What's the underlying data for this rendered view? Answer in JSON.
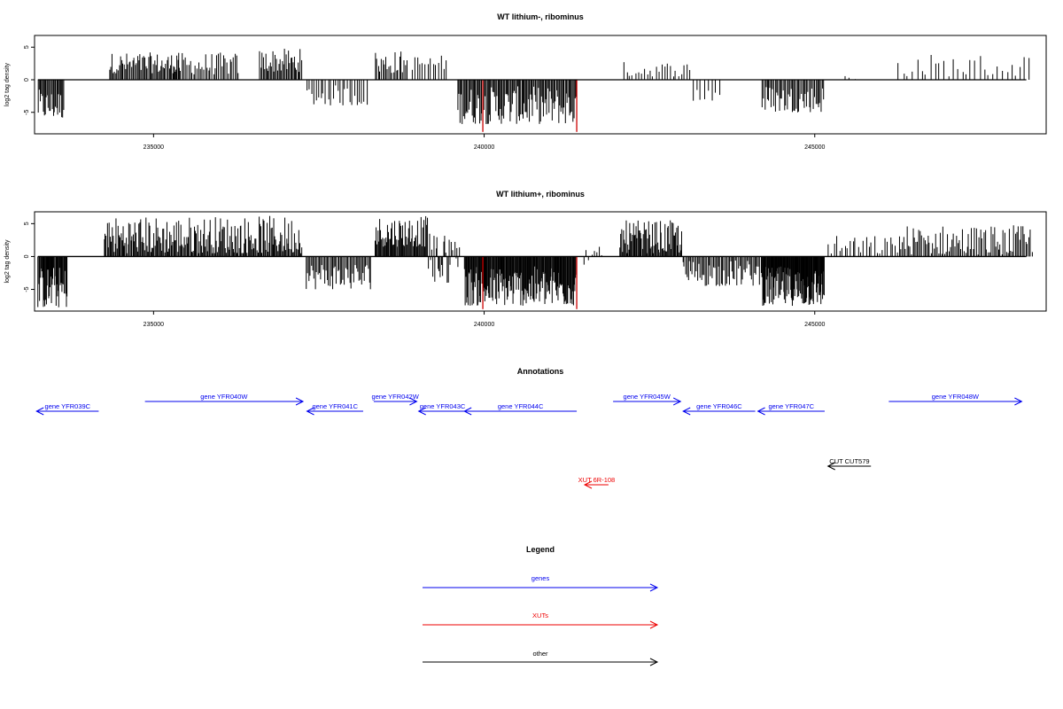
{
  "chart_data": [
    {
      "type": "bar",
      "title": "WT lithium-, ribominus",
      "ylabel": "log2 tag density",
      "xlim": [
        233200,
        248500
      ],
      "ylim": [
        -8.3,
        6.8
      ],
      "x_ticks": [
        235000,
        240000,
        245000
      ],
      "x_tick_labels": [
        "235000",
        "240000",
        "245000"
      ],
      "y_ticks": [
        -5,
        0,
        5
      ],
      "y_tick_labels": [
        "-5",
        "0",
        "5"
      ],
      "grid": false,
      "baseline_range": [
        233250,
        248200
      ],
      "highlight_color": "#cc0000",
      "highlights": [
        {
          "x": 239980,
          "value": -8.0
        },
        {
          "x": 241400,
          "value": -8.0
        }
      ],
      "segments": [
        {
          "start": 233250,
          "end": 233650,
          "n": 26,
          "min": -6.0,
          "max": -1.5,
          "sign": -1
        },
        {
          "start": 234330,
          "end": 235400,
          "n": 58,
          "min": 1.0,
          "max": 4.2,
          "sign": 1
        },
        {
          "start": 235300,
          "end": 236300,
          "n": 40,
          "min": 0.8,
          "max": 4.2,
          "sign": 1
        },
        {
          "start": 236600,
          "end": 237250,
          "n": 36,
          "min": 1.2,
          "max": 4.8,
          "sign": 1
        },
        {
          "start": 237300,
          "end": 238250,
          "n": 26,
          "min": -4.0,
          "max": -0.8,
          "sign": -1
        },
        {
          "start": 238350,
          "end": 238850,
          "n": 22,
          "min": 1.0,
          "max": 4.5,
          "sign": 1
        },
        {
          "start": 238900,
          "end": 239450,
          "n": 14,
          "min": 1.5,
          "max": 3.8,
          "sign": 1
        },
        {
          "start": 239600,
          "end": 241400,
          "n": 110,
          "min": -6.8,
          "max": -1.0,
          "sign": -1
        },
        {
          "start": 242100,
          "end": 243150,
          "n": 24,
          "min": 0.5,
          "max": 2.8,
          "sign": 1
        },
        {
          "start": 243150,
          "end": 243600,
          "n": 8,
          "min": -3.5,
          "max": -0.5,
          "sign": -1
        },
        {
          "start": 244200,
          "end": 245150,
          "n": 48,
          "min": -5.0,
          "max": -0.8,
          "sign": -1
        },
        {
          "start": 245400,
          "end": 245800,
          "n": 4,
          "min": -1.2,
          "max": 1.0,
          "sign": 1
        },
        {
          "start": 246250,
          "end": 248300,
          "n": 30,
          "min": 0.5,
          "max": 4.0,
          "sign": 1
        }
      ]
    },
    {
      "type": "bar",
      "title": "WT lithium+, ribominus",
      "ylabel": "log2 tag density",
      "xlim": [
        233200,
        248500
      ],
      "ylim": [
        -8.3,
        6.8
      ],
      "x_ticks": [
        235000,
        240000,
        245000
      ],
      "x_tick_labels": [
        "235000",
        "240000",
        "245000"
      ],
      "y_ticks": [
        -5,
        0,
        5
      ],
      "y_tick_labels": [
        "-5",
        "0",
        "5"
      ],
      "grid": false,
      "baseline_range": [
        233250,
        248200
      ],
      "highlight_color": "#cc0000",
      "highlights": [
        {
          "x": 239980,
          "value": -8.0
        },
        {
          "x": 241400,
          "value": -8.0
        }
      ],
      "segments": [
        {
          "start": 233250,
          "end": 233700,
          "n": 40,
          "min": -7.8,
          "max": -1.5,
          "sign": -1
        },
        {
          "start": 234250,
          "end": 237250,
          "n": 200,
          "min": 0.5,
          "max": 6.2,
          "sign": 1
        },
        {
          "start": 237300,
          "end": 238300,
          "n": 50,
          "min": -5.0,
          "max": -0.8,
          "sign": -1
        },
        {
          "start": 238350,
          "end": 239150,
          "n": 60,
          "min": 1.5,
          "max": 6.2,
          "sign": 1
        },
        {
          "start": 239150,
          "end": 239650,
          "n": 30,
          "min": -4.0,
          "max": 3.5,
          "sign": 0
        },
        {
          "start": 239700,
          "end": 241400,
          "n": 160,
          "min": -7.5,
          "max": -1.5,
          "sign": -1
        },
        {
          "start": 241500,
          "end": 241800,
          "n": 8,
          "min": -1.5,
          "max": 1.5,
          "sign": 0
        },
        {
          "start": 242050,
          "end": 243000,
          "n": 70,
          "min": 0.5,
          "max": 5.5,
          "sign": 1
        },
        {
          "start": 243000,
          "end": 244200,
          "n": 60,
          "min": -4.5,
          "max": -0.5,
          "sign": -1
        },
        {
          "start": 244200,
          "end": 245150,
          "n": 110,
          "min": -7.5,
          "max": -1.5,
          "sign": -1
        },
        {
          "start": 245200,
          "end": 246250,
          "n": 26,
          "min": 0.3,
          "max": 3.2,
          "sign": 1
        },
        {
          "start": 246250,
          "end": 248300,
          "n": 90,
          "min": 0.3,
          "max": 4.8,
          "sign": 1
        }
      ]
    }
  ],
  "annotations": {
    "title": "Annotations",
    "xlim": [
      233200,
      248500
    ],
    "features": [
      {
        "label": "gene YFR039C",
        "start": 233230,
        "end": 234170,
        "strand": "-",
        "class": "gene",
        "row": 2
      },
      {
        "label": "gene YFR040W",
        "start": 234870,
        "end": 237260,
        "strand": "+",
        "class": "gene",
        "row": 1
      },
      {
        "label": "gene YFR041C",
        "start": 237320,
        "end": 238170,
        "strand": "-",
        "class": "gene",
        "row": 2
      },
      {
        "label": "gene YFR042W",
        "start": 238330,
        "end": 238980,
        "strand": "+",
        "class": "gene",
        "row": 1
      },
      {
        "label": "gene YFR043C",
        "start": 239010,
        "end": 239730,
        "strand": "-",
        "class": "gene",
        "row": 2
      },
      {
        "label": "gene YFR044C",
        "start": 239700,
        "end": 241400,
        "strand": "-",
        "class": "gene",
        "row": 2
      },
      {
        "label": "gene YFR045W",
        "start": 241950,
        "end": 242970,
        "strand": "+",
        "class": "gene",
        "row": 1
      },
      {
        "label": "gene YFR046C",
        "start": 243010,
        "end": 244100,
        "strand": "-",
        "class": "gene",
        "row": 2
      },
      {
        "label": "gene YFR047C",
        "start": 244140,
        "end": 245150,
        "strand": "-",
        "class": "gene",
        "row": 2
      },
      {
        "label": "gene YFR048W",
        "start": 246120,
        "end": 248130,
        "strand": "+",
        "class": "gene",
        "row": 1
      },
      {
        "label": "CUT CUT579",
        "start": 245200,
        "end": 245850,
        "strand": "-",
        "class": "other",
        "row": 3
      },
      {
        "label": "XUT 6R-108",
        "start": 241520,
        "end": 241880,
        "strand": "-",
        "class": "xut",
        "row": 4
      }
    ]
  },
  "legend": {
    "title": "Legend",
    "entries": [
      {
        "label": "genes",
        "color": "#0000ee"
      },
      {
        "label": "XUTs",
        "color": "#ee0000"
      },
      {
        "label": "other",
        "color": "#000000"
      }
    ]
  },
  "colors": {
    "gene": "#0000ee",
    "xut": "#ee0000",
    "other": "#000000",
    "bars": "#000000"
  }
}
